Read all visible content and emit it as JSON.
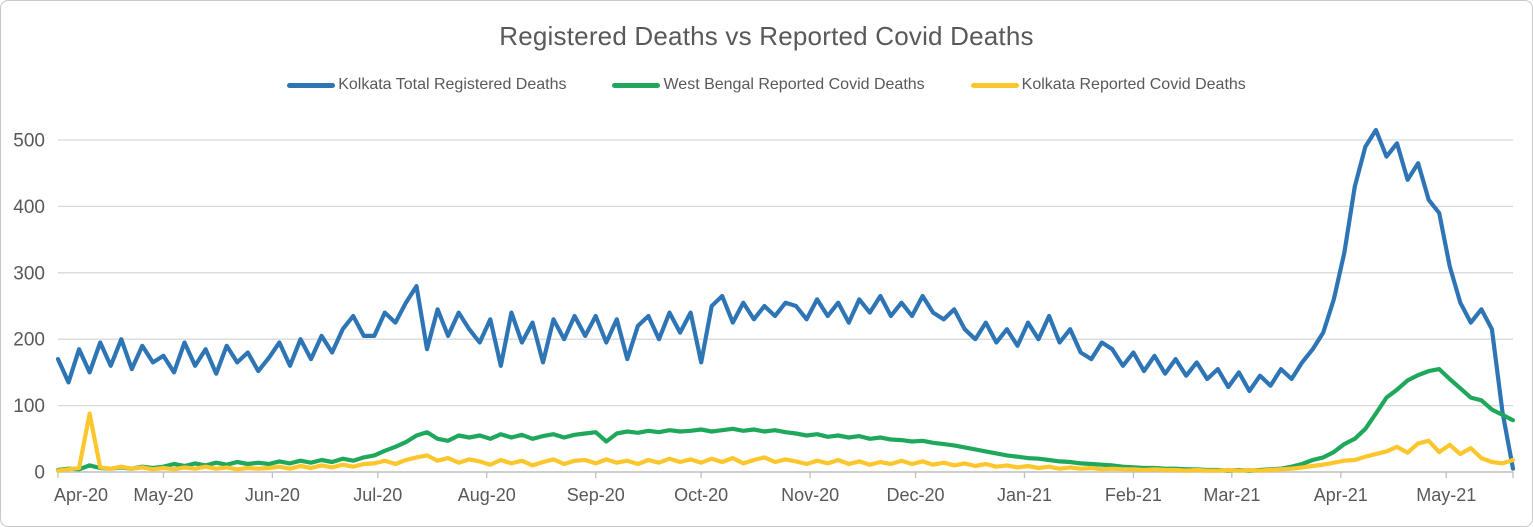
{
  "title": "Registered Deaths vs Reported Covid Deaths",
  "legend": [
    {
      "label": "Kolkata Total Registered Deaths",
      "color": "#2E75B6"
    },
    {
      "label": "West Bengal Reported Covid Deaths",
      "color": "#1FA85C"
    },
    {
      "label": "Kolkata Reported Covid Deaths",
      "color": "#FDC62C"
    }
  ],
  "colors": {
    "title_text": "#595959",
    "axis_text": "#595959",
    "gridline": "#D9D9D9",
    "axis_line": "#BFBFBF",
    "background": "#FFFFFF",
    "blue_series": "#2E75B6",
    "green_series": "#1FA85C",
    "yellow_series": "#FDC62C"
  },
  "chart_data": {
    "type": "line",
    "title": "Registered Deaths vs Reported Covid Deaths",
    "xlabel": "",
    "ylabel": "",
    "ylim": [
      0,
      500
    ],
    "yticks": [
      0,
      100,
      200,
      300,
      400,
      500
    ],
    "grid": "horizontal",
    "legend_position": "top",
    "x_tick_labels": [
      "Apr-20",
      "May-20",
      "Jun-20",
      "Jul-20",
      "Aug-20",
      "Sep-20",
      "Oct-20",
      "Nov-20",
      "Dec-20",
      "Jan-21",
      "Feb-21",
      "Mar-21",
      "Apr-21",
      "May-21"
    ],
    "month_start_days": [
      0,
      30,
      61,
      91,
      122,
      153,
      183,
      214,
      244,
      275,
      306,
      334,
      365,
      395
    ],
    "days_total": 414,
    "series": [
      {
        "name": "Kolkata Total Registered Deaths",
        "color": "#2E75B6",
        "day_step": 3,
        "values": [
          170,
          135,
          185,
          150,
          195,
          160,
          200,
          155,
          190,
          165,
          175,
          150,
          195,
          160,
          185,
          148,
          190,
          165,
          180,
          152,
          172,
          195,
          160,
          200,
          170,
          205,
          180,
          215,
          235,
          205,
          205,
          240,
          225,
          255,
          280,
          185,
          245,
          205,
          240,
          215,
          195,
          230,
          160,
          240,
          195,
          225,
          165,
          230,
          200,
          235,
          205,
          235,
          195,
          230,
          170,
          220,
          235,
          200,
          240,
          210,
          240,
          165,
          250,
          265,
          225,
          255,
          230,
          250,
          235,
          255,
          250,
          230,
          260,
          235,
          255,
          225,
          260,
          240,
          265,
          235,
          255,
          235,
          265,
          240,
          230,
          245,
          215,
          200,
          225,
          195,
          215,
          190,
          225,
          200,
          235,
          195,
          215,
          180,
          170,
          195,
          185,
          160,
          180,
          152,
          175,
          148,
          170,
          145,
          165,
          140,
          155,
          128,
          150,
          122,
          145,
          130,
          155,
          140,
          165,
          185,
          210,
          260,
          330,
          430,
          490,
          515,
          475,
          495,
          440,
          465,
          410,
          390,
          310,
          255,
          225,
          245,
          215,
          90,
          5
        ]
      },
      {
        "name": "West Bengal Reported Covid Deaths",
        "color": "#1FA85C",
        "day_step": 3,
        "values": [
          3,
          5,
          4,
          10,
          6,
          5,
          7,
          5,
          8,
          6,
          8,
          12,
          9,
          13,
          10,
          14,
          11,
          15,
          12,
          14,
          12,
          16,
          13,
          17,
          14,
          18,
          15,
          20,
          17,
          22,
          25,
          32,
          38,
          45,
          55,
          60,
          50,
          47,
          55,
          52,
          55,
          50,
          57,
          52,
          56,
          50,
          54,
          57,
          52,
          56,
          58,
          60,
          46,
          58,
          61,
          59,
          62,
          60,
          63,
          61,
          62,
          64,
          61,
          63,
          65,
          62,
          64,
          61,
          63,
          60,
          58,
          55,
          57,
          53,
          55,
          52,
          54,
          50,
          52,
          49,
          48,
          46,
          47,
          44,
          42,
          40,
          37,
          34,
          31,
          28,
          25,
          23,
          21,
          20,
          18,
          16,
          15,
          13,
          12,
          11,
          10,
          8,
          7,
          6,
          6,
          5,
          5,
          4,
          4,
          3,
          3,
          2,
          3,
          2,
          3,
          4,
          5,
          8,
          12,
          18,
          22,
          30,
          42,
          50,
          65,
          88,
          112,
          124,
          138,
          146,
          152,
          155,
          140,
          126,
          112,
          108,
          94,
          86,
          78
        ]
      },
      {
        "name": "Kolkata Reported Covid Deaths",
        "color": "#FDC62C",
        "day_step": 3,
        "values": [
          2,
          4,
          6,
          88,
          7,
          5,
          8,
          5,
          7,
          4,
          6,
          4,
          7,
          5,
          8,
          5,
          7,
          4,
          6,
          5,
          6,
          8,
          5,
          9,
          6,
          10,
          7,
          11,
          8,
          12,
          13,
          17,
          12,
          18,
          22,
          25,
          17,
          21,
          14,
          19,
          16,
          11,
          18,
          13,
          17,
          10,
          15,
          19,
          12,
          17,
          18,
          13,
          19,
          14,
          17,
          12,
          18,
          14,
          20,
          15,
          19,
          14,
          20,
          15,
          21,
          13,
          18,
          22,
          15,
          19,
          16,
          12,
          17,
          13,
          18,
          12,
          16,
          11,
          15,
          12,
          17,
          12,
          16,
          11,
          14,
          10,
          13,
          9,
          12,
          8,
          10,
          7,
          9,
          6,
          8,
          5,
          7,
          5,
          6,
          4,
          5,
          4,
          4,
          3,
          4,
          3,
          3,
          2,
          3,
          2,
          2,
          3,
          2,
          3,
          2,
          3,
          4,
          5,
          7,
          9,
          11,
          14,
          17,
          18,
          23,
          27,
          31,
          38,
          29,
          43,
          47,
          30,
          41,
          27,
          36,
          21,
          15,
          13,
          18
        ]
      }
    ]
  }
}
